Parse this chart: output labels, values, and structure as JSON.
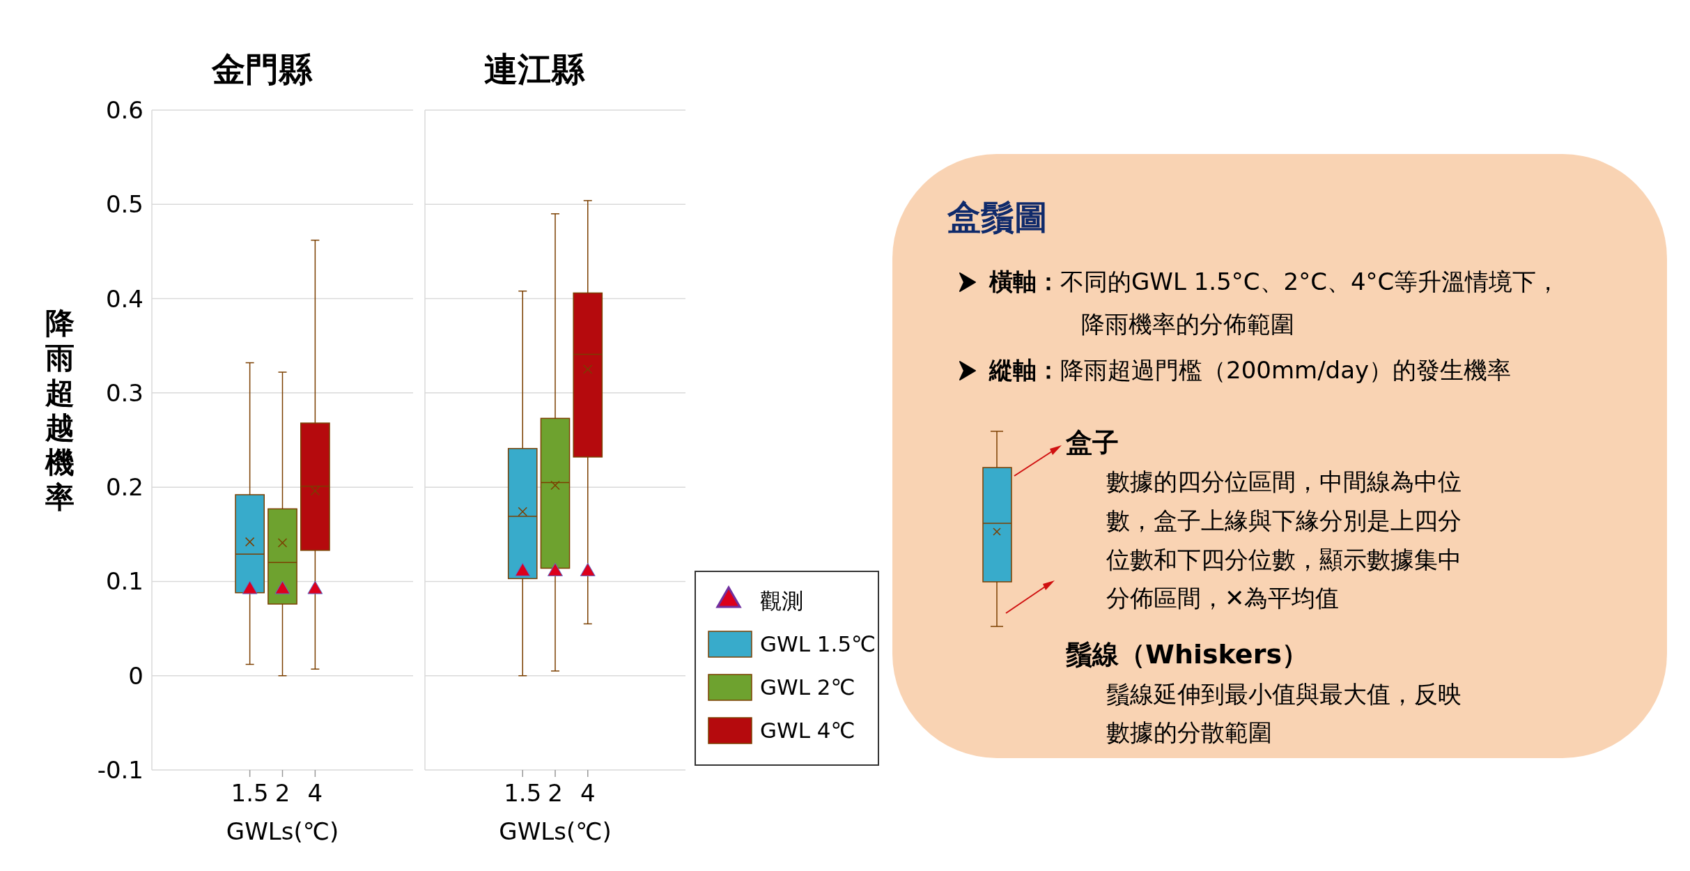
{
  "chart_data": [
    {
      "type": "box",
      "title": "金門縣",
      "xlabel": "GWLs(℃)",
      "ylabel": "降雨超越機率",
      "categories": [
        "1.5",
        "2",
        "4"
      ],
      "ylim": [
        -0.1,
        0.6
      ],
      "yticks": [
        -0.1,
        0,
        0.1,
        0.2,
        0.3,
        0.4,
        0.5,
        0.6
      ],
      "grid": "y",
      "series": [
        {
          "type": "box",
          "color": "#38abcb",
          "boxes": [
            {
              "low": 0.012,
              "q1": 0.088,
              "median": 0.129,
              "q3": 0.192,
              "high": 0.332,
              "mean": 0.142
            },
            null,
            null
          ]
        },
        {
          "type": "box",
          "color": "#6ea22f",
          "boxes": [
            null,
            {
              "low": 0,
              "q1": 0.076,
              "median": 0.12,
              "q3": 0.177,
              "high": 0.322,
              "mean": 0.141
            },
            null
          ]
        },
        {
          "type": "box",
          "color": "#b50a0d",
          "boxes": [
            null,
            null,
            {
              "low": 0.007,
              "q1": 0.133,
              "median": 0.201,
              "q3": 0.268,
              "high": 0.462,
              "mean": 0.196
            }
          ]
        },
        {
          "type": "scatter",
          "color": "#dc001c",
          "marker": "triangle",
          "values": [
            0.09,
            0.09,
            0.09
          ]
        }
      ]
    },
    {
      "type": "box",
      "title": "連江縣",
      "xlabel": "GWLs(℃)",
      "categories": [
        "1.5",
        "2",
        "4"
      ],
      "ylim": [
        -0.1,
        0.6
      ],
      "yticks": [
        -0.1,
        0,
        0.1,
        0.2,
        0.3,
        0.4,
        0.5,
        0.6
      ],
      "grid": "y",
      "tick_labels": "x",
      "legend": "right",
      "series": [
        {
          "type": "scatter",
          "name": "觀測",
          "color": "#dc001c",
          "marker": "triangle",
          "values": [
            0.109,
            0.109,
            0.109
          ]
        },
        {
          "type": "box",
          "name": "GWL 1.5℃",
          "color": "#38abcb",
          "boxes": [
            {
              "low": 0,
              "q1": 0.103,
              "median": 0.169,
              "q3": 0.241,
              "high": 0.408,
              "mean": 0.174
            },
            null,
            null
          ]
        },
        {
          "type": "box",
          "name": "GWL 2℃",
          "color": "#6ea22f",
          "boxes": [
            null,
            {
              "low": 0.005,
              "q1": 0.114,
              "median": 0.205,
              "q3": 0.273,
              "high": 0.49,
              "mean": 0.202
            },
            null
          ]
        },
        {
          "type": "box",
          "name": "GWL 4℃",
          "color": "#b50a0d",
          "boxes": [
            null,
            null,
            {
              "low": 0.055,
              "q1": 0.232,
              "median": 0.341,
              "q3": 0.406,
              "high": 0.504,
              "mean": 0.325
            }
          ]
        }
      ]
    },
    {
      "type": "other",
      "title": "盒鬚圖",
      "annotations": [
        "橫軸：不同的GWL 1.5°C、2°C、4°C等升溫情境下，",
        "降雨機率的分佈範圍",
        "縱軸：降雨超過門檻（200mm/day）的發生機率",
        "盒子",
        "數據的四分位區間，中間線為中位",
        "數，盒子上緣與下緣分別是上四分",
        "位數和下四分位數，顯示數據集中",
        "分佈區間，✕為平均值",
        "鬚線（Whiskers）",
        "鬚線延伸到最小值與最大值，反映",
        "數據的分散範圍"
      ]
    }
  ]
}
